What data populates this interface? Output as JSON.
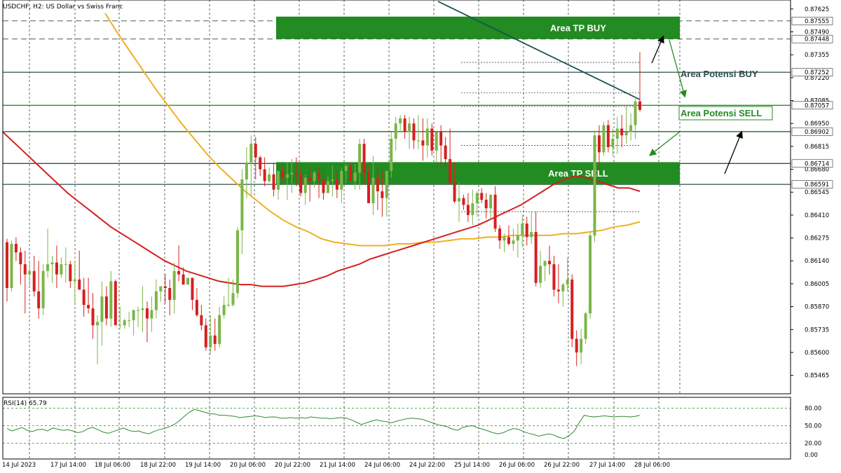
{
  "header": {
    "title": "USDCHF, H2:  US Dollar vs Swiss Franc"
  },
  "rsi": {
    "label": "RSI(14) 65.79",
    "levels": [
      "80.00",
      "50.00",
      "20.00",
      "0.00"
    ]
  },
  "chart_data": {
    "type": "candlestick",
    "symbol": "USDCHF",
    "timeframe": "H2",
    "price_ticks": [
      "0.87625",
      "0.87490",
      "0.87355",
      "0.87220",
      "0.87085",
      "0.86950",
      "0.86815",
      "0.86680",
      "0.86545",
      "0.86410",
      "0.86275",
      "0.86140",
      "0.86005",
      "0.85870",
      "0.85735",
      "0.85600",
      "0.85465"
    ],
    "highlighted_levels": [
      {
        "price": 0.87555,
        "label": "0.87555",
        "style": "dashed",
        "color": "#2f4f2f"
      },
      {
        "price": 0.87448,
        "label": "0.87448",
        "style": "dashed",
        "color": "#2f4f2f"
      },
      {
        "price": 0.87252,
        "label": "0.87252",
        "style": "solid",
        "color": "#2f4f4f"
      },
      {
        "price": 0.87057,
        "label": "0.87057",
        "style": "solid",
        "color": "#2e8b2e"
      },
      {
        "price": 0.86902,
        "label": "0.86902",
        "style": "solid",
        "color": "#1e6e1e"
      },
      {
        "price": 0.86714,
        "label": "0.86714",
        "style": "solid",
        "color": "#2f4f4f"
      },
      {
        "price": 0.86591,
        "label": "0.86591",
        "style": "solid",
        "color": "#2f4f4f"
      }
    ],
    "x_labels": [
      "14 Jul 2023",
      "17 Jul 14:00",
      "18 Jul 06:00",
      "18 Jul 22:00",
      "19 Jul 14:00",
      "20 Jul 06:00",
      "20 Jul 22:00",
      "21 Jul 14:00",
      "24 Jul 06:00",
      "24 Jul 22:00",
      "25 Jul 14:00",
      "26 Jul 06:00",
      "26 Jul 22:00",
      "27 Jul 14:00",
      "28 Jul 06:00"
    ],
    "zones": [
      {
        "label": "Area TP BUY",
        "from": 0.87448,
        "to": 0.8758
      },
      {
        "label": "Area TP SELL",
        "from": 0.86591,
        "to": 0.86722
      }
    ],
    "annotations": [
      "Area Potensi BUY",
      "Area Potensi SELL"
    ],
    "colors": {
      "bull": "#7ab648",
      "bear": "#d42020",
      "zone": "#228b22",
      "ma_fast": "#d42020",
      "ma_slow": "#f0b020",
      "trend": "#1e5050",
      "rsi": "#2e8b2e"
    },
    "candles": [
      [
        0.8625,
        0.8627,
        0.859,
        0.8598
      ],
      [
        0.8598,
        0.8626,
        0.8596,
        0.8624
      ],
      [
        0.8624,
        0.8628,
        0.8614,
        0.8619
      ],
      [
        0.8619,
        0.8622,
        0.86,
        0.8612
      ],
      [
        0.8612,
        0.862,
        0.8583,
        0.8606
      ],
      [
        0.8606,
        0.8614,
        0.8599,
        0.8608
      ],
      [
        0.8608,
        0.8617,
        0.8593,
        0.8596
      ],
      [
        0.8596,
        0.8614,
        0.858,
        0.8586
      ],
      [
        0.8586,
        0.8612,
        0.8582,
        0.8608
      ],
      [
        0.8608,
        0.8633,
        0.8604,
        0.8612
      ],
      [
        0.8612,
        0.8617,
        0.8601,
        0.8613
      ],
      [
        0.8613,
        0.8623,
        0.8598,
        0.8606
      ],
      [
        0.8606,
        0.8616,
        0.8604,
        0.8612
      ],
      [
        0.8612,
        0.8622,
        0.8601,
        0.8612
      ],
      [
        0.8612,
        0.8614,
        0.8598,
        0.8602
      ],
      [
        0.8602,
        0.8614,
        0.8589,
        0.8603
      ],
      [
        0.8603,
        0.862,
        0.8597,
        0.8597
      ],
      [
        0.8597,
        0.8604,
        0.8581,
        0.8588
      ],
      [
        0.8588,
        0.8604,
        0.8583,
        0.8586
      ],
      [
        0.8586,
        0.8595,
        0.8568,
        0.8576
      ],
      [
        0.8576,
        0.8582,
        0.8553,
        0.8578
      ],
      [
        0.8578,
        0.8602,
        0.8564,
        0.8593
      ],
      [
        0.8593,
        0.8599,
        0.8576,
        0.858
      ],
      [
        0.858,
        0.8608,
        0.8575,
        0.8602
      ],
      [
        0.8602,
        0.8603,
        0.8576,
        0.8576
      ],
      [
        0.8576,
        0.8587,
        0.8574,
        0.8576
      ],
      [
        0.8576,
        0.858,
        0.8574,
        0.8579
      ],
      [
        0.8579,
        0.8584,
        0.8575,
        0.8579
      ],
      [
        0.8579,
        0.8585,
        0.857,
        0.8585
      ],
      [
        0.8585,
        0.8587,
        0.8575,
        0.8585
      ],
      [
        0.8585,
        0.8599,
        0.8572,
        0.8586
      ],
      [
        0.8586,
        0.859,
        0.8566,
        0.858
      ],
      [
        0.858,
        0.8593,
        0.8572,
        0.8585
      ],
      [
        0.8585,
        0.8603,
        0.858,
        0.8596
      ],
      [
        0.8596,
        0.8599,
        0.859,
        0.8599
      ],
      [
        0.8599,
        0.8606,
        0.8589,
        0.8598
      ],
      [
        0.8598,
        0.8603,
        0.8582,
        0.8591
      ],
      [
        0.8591,
        0.8613,
        0.8583,
        0.8608
      ],
      [
        0.8608,
        0.8623,
        0.8602,
        0.8606
      ],
      [
        0.8606,
        0.861,
        0.86,
        0.86
      ],
      [
        0.86,
        0.8604,
        0.86,
        0.8604
      ],
      [
        0.8604,
        0.8604,
        0.8585,
        0.8591
      ],
      [
        0.8591,
        0.8598,
        0.8581,
        0.8582
      ],
      [
        0.8582,
        0.8588,
        0.8573,
        0.8576
      ],
      [
        0.8576,
        0.858,
        0.8561,
        0.8563
      ],
      [
        0.8563,
        0.8582,
        0.8559,
        0.857
      ],
      [
        0.857,
        0.858,
        0.8561,
        0.8565
      ],
      [
        0.8565,
        0.8587,
        0.8563,
        0.8582
      ],
      [
        0.8582,
        0.8593,
        0.858,
        0.8588
      ],
      [
        0.8588,
        0.8604,
        0.8587,
        0.8588
      ],
      [
        0.8588,
        0.8603,
        0.8587,
        0.8595
      ],
      [
        0.8595,
        0.8634,
        0.8592,
        0.8632
      ],
      [
        0.8632,
        0.8668,
        0.8618,
        0.8662
      ],
      [
        0.8662,
        0.8681,
        0.8651,
        0.8672
      ],
      [
        0.8672,
        0.8688,
        0.8652,
        0.8683
      ],
      [
        0.8683,
        0.8687,
        0.8662,
        0.8675
      ],
      [
        0.8675,
        0.8676,
        0.8664,
        0.8668
      ],
      [
        0.8668,
        0.8675,
        0.8658,
        0.8661
      ],
      [
        0.8661,
        0.8669,
        0.866,
        0.8665
      ],
      [
        0.8665,
        0.8672,
        0.8652,
        0.8656
      ],
      [
        0.8656,
        0.8666,
        0.865,
        0.8667
      ],
      [
        0.8667,
        0.867,
        0.8661,
        0.8663
      ],
      [
        0.8663,
        0.8672,
        0.865,
        0.8665
      ],
      [
        0.8665,
        0.8674,
        0.8654,
        0.8666
      ],
      [
        0.8666,
        0.8675,
        0.8658,
        0.8665
      ],
      [
        0.8665,
        0.8669,
        0.8652,
        0.8654
      ],
      [
        0.8654,
        0.8665,
        0.8647,
        0.8663
      ],
      [
        0.8663,
        0.8669,
        0.8649,
        0.8661
      ],
      [
        0.8661,
        0.8667,
        0.8657,
        0.8666
      ],
      [
        0.8666,
        0.8669,
        0.8651,
        0.8662
      ],
      [
        0.8662,
        0.8669,
        0.865,
        0.8654
      ],
      [
        0.8654,
        0.8664,
        0.8654,
        0.8661
      ],
      [
        0.8661,
        0.867,
        0.8652,
        0.8662
      ],
      [
        0.8662,
        0.8667,
        0.8651,
        0.8656
      ],
      [
        0.8656,
        0.8669,
        0.8648,
        0.8667
      ],
      [
        0.8667,
        0.8671,
        0.866,
        0.867
      ],
      [
        0.867,
        0.8672,
        0.8661,
        0.8661
      ],
      [
        0.8661,
        0.8671,
        0.8656,
        0.8666
      ],
      [
        0.8666,
        0.8686,
        0.8656,
        0.8683
      ],
      [
        0.8683,
        0.8686,
        0.8659,
        0.8666
      ],
      [
        0.8666,
        0.867,
        0.8648,
        0.8648
      ],
      [
        0.8648,
        0.8676,
        0.8641,
        0.8663
      ],
      [
        0.8663,
        0.8669,
        0.8644,
        0.8655
      ],
      [
        0.8655,
        0.8667,
        0.864,
        0.8651
      ],
      [
        0.8651,
        0.8667,
        0.864,
        0.8667
      ],
      [
        0.8667,
        0.869,
        0.8663,
        0.8686
      ],
      [
        0.8686,
        0.8699,
        0.8679,
        0.8695
      ],
      [
        0.8695,
        0.87,
        0.869,
        0.8698
      ],
      [
        0.8698,
        0.87,
        0.8686,
        0.869
      ],
      [
        0.869,
        0.8699,
        0.868,
        0.8695
      ],
      [
        0.8695,
        0.8698,
        0.868,
        0.8685
      ],
      [
        0.8685,
        0.87,
        0.868,
        0.8685
      ],
      [
        0.8685,
        0.8698,
        0.8673,
        0.8682
      ],
      [
        0.8682,
        0.8698,
        0.8675,
        0.8692
      ],
      [
        0.8692,
        0.8695,
        0.8676,
        0.8679
      ],
      [
        0.8679,
        0.869,
        0.8672,
        0.869
      ],
      [
        0.869,
        0.8694,
        0.8669,
        0.8682
      ],
      [
        0.8682,
        0.8687,
        0.8669,
        0.8674
      ],
      [
        0.8674,
        0.8692,
        0.8659,
        0.866
      ],
      [
        0.866,
        0.8672,
        0.8648,
        0.8649
      ],
      [
        0.8649,
        0.866,
        0.8637,
        0.8651
      ],
      [
        0.8651,
        0.8653,
        0.8644,
        0.8647
      ],
      [
        0.8647,
        0.8654,
        0.8637,
        0.8641
      ],
      [
        0.8641,
        0.8656,
        0.8635,
        0.8648
      ],
      [
        0.8648,
        0.8655,
        0.864,
        0.8654
      ],
      [
        0.8654,
        0.8657,
        0.8648,
        0.865
      ],
      [
        0.865,
        0.8654,
        0.8639,
        0.8645
      ],
      [
        0.8645,
        0.8653,
        0.8638,
        0.8653
      ],
      [
        0.8653,
        0.8658,
        0.8631,
        0.8633
      ],
      [
        0.8633,
        0.8635,
        0.8621,
        0.8626
      ],
      [
        0.8626,
        0.863,
        0.8619,
        0.8628
      ],
      [
        0.8628,
        0.8635,
        0.8623,
        0.8624
      ],
      [
        0.8624,
        0.8633,
        0.862,
        0.8626
      ],
      [
        0.8626,
        0.8636,
        0.8616,
        0.8629
      ],
      [
        0.8629,
        0.8641,
        0.8622,
        0.8636
      ],
      [
        0.8636,
        0.864,
        0.8623,
        0.8628
      ],
      [
        0.8628,
        0.8643,
        0.8624,
        0.8631
      ],
      [
        0.8631,
        0.8643,
        0.8599,
        0.8601
      ],
      [
        0.8601,
        0.862,
        0.8598,
        0.8611
      ],
      [
        0.8611,
        0.8613,
        0.8602,
        0.8614
      ],
      [
        0.8614,
        0.8623,
        0.8606,
        0.8612
      ],
      [
        0.8612,
        0.8617,
        0.8593,
        0.8597
      ],
      [
        0.8597,
        0.8612,
        0.8589,
        0.8596
      ],
      [
        0.8596,
        0.8601,
        0.8587,
        0.86
      ],
      [
        0.86,
        0.8616,
        0.8596,
        0.8603
      ],
      [
        0.8603,
        0.8606,
        0.8563,
        0.8568
      ],
      [
        0.8568,
        0.8573,
        0.8552,
        0.856
      ],
      [
        0.856,
        0.8574,
        0.8553,
        0.8568
      ],
      [
        0.8568,
        0.8584,
        0.8565,
        0.8583
      ],
      [
        0.8583,
        0.8631,
        0.858,
        0.8629
      ],
      [
        0.8629,
        0.8691,
        0.8625,
        0.8688
      ],
      [
        0.8688,
        0.8694,
        0.8667,
        0.8678
      ],
      [
        0.8678,
        0.8696,
        0.8676,
        0.8694
      ],
      [
        0.8694,
        0.8697,
        0.8678,
        0.8681
      ],
      [
        0.8681,
        0.8692,
        0.8676,
        0.8686
      ],
      [
        0.8686,
        0.8699,
        0.8677,
        0.8692
      ],
      [
        0.8692,
        0.87,
        0.8681,
        0.8688
      ],
      [
        0.8688,
        0.8705,
        0.8683,
        0.869
      ],
      [
        0.869,
        0.8701,
        0.8685,
        0.8694
      ],
      [
        0.8694,
        0.8711,
        0.8686,
        0.8708
      ],
      [
        0.8708,
        0.8737,
        0.8702,
        0.8703
      ]
    ],
    "ma_fast": [
      0.869,
      0.8684,
      0.8678,
      0.8672,
      0.8666,
      0.866,
      0.8654,
      0.8649,
      0.8644,
      0.8639,
      0.8634,
      0.863,
      0.8626,
      0.8622,
      0.8618,
      0.8614,
      0.8611,
      0.8608,
      0.8606,
      0.8604,
      0.8602,
      0.8601,
      0.86,
      0.86,
      0.8599,
      0.8599,
      0.8599,
      0.86,
      0.8601,
      0.8603,
      0.8605,
      0.8608,
      0.861,
      0.8612,
      0.8615,
      0.8617,
      0.8619,
      0.8621,
      0.8623,
      0.8625,
      0.8627,
      0.8629,
      0.8631,
      0.8633,
      0.8635,
      0.8638,
      0.8641,
      0.8644,
      0.8647,
      0.8651,
      0.8655,
      0.8659,
      0.8662,
      0.8664,
      0.8663,
      0.8661,
      0.8659,
      0.8657,
      0.8657,
      0.8655
    ],
    "ma_slow": [
      0.876,
      0.8748,
      0.8737,
      0.8726,
      0.8715,
      0.8705,
      0.8695,
      0.8686,
      0.8677,
      0.8669,
      0.8662,
      0.8655,
      0.8649,
      0.8643,
      0.8638,
      0.8634,
      0.8631,
      0.8627,
      0.8625,
      0.8624,
      0.8623,
      0.8623,
      0.8623,
      0.8624,
      0.8624,
      0.8625,
      0.8625,
      0.8626,
      0.8627,
      0.8627,
      0.8628,
      0.8628,
      0.8629,
      0.8629,
      0.8629,
      0.8629,
      0.863,
      0.863,
      0.8631,
      0.8632,
      0.8634,
      0.8635,
      0.8637
    ],
    "rsi_values": [
      45,
      41,
      44,
      47,
      42,
      40,
      43,
      44,
      41,
      46,
      44,
      42,
      43,
      41,
      38,
      40,
      45,
      47,
      43,
      39,
      37,
      40,
      43,
      46,
      42,
      40,
      41,
      38,
      36,
      40,
      43,
      45,
      48,
      52,
      58,
      66,
      73,
      78,
      76,
      73,
      71,
      70,
      68,
      68,
      67,
      66,
      64,
      65,
      66,
      67,
      66,
      64,
      65,
      65,
      63,
      63,
      64,
      63,
      64,
      63,
      65,
      64,
      63,
      63,
      62,
      63,
      64,
      63,
      60,
      56,
      52,
      55,
      58,
      60,
      58,
      57,
      55,
      58,
      60,
      62,
      63,
      62,
      61,
      58,
      55,
      52,
      50,
      48,
      44,
      42,
      47,
      49,
      50,
      46,
      44,
      41,
      38,
      36,
      38,
      42,
      45,
      44,
      40,
      37,
      35,
      32,
      34,
      36,
      34,
      30,
      28,
      33,
      40,
      55,
      68,
      66,
      65,
      66,
      67,
      66,
      65,
      66,
      66,
      65,
      66,
      68
    ]
  }
}
